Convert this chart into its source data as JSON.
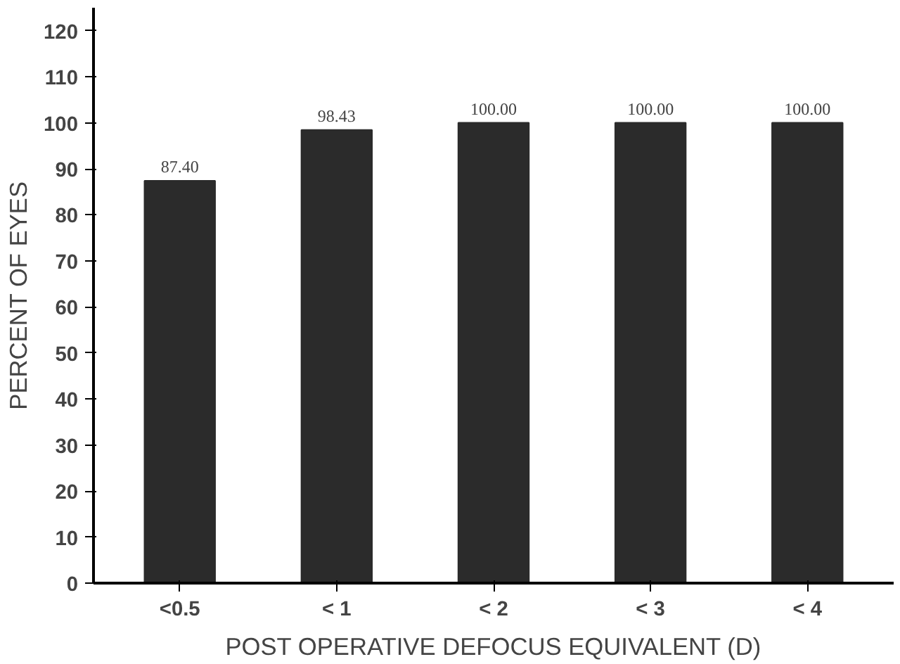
{
  "chart_data": {
    "type": "bar",
    "xlabel": "POST OPERATIVE DEFOCUS EQUIVALENT (D)",
    "ylabel": "PERCENT OF EYES",
    "categories": [
      "<0.5",
      "< 1",
      "< 2",
      "< 3",
      "< 4"
    ],
    "values": [
      87.4,
      98.43,
      100.0,
      100.0,
      100.0
    ],
    "value_labels": [
      "87.40",
      "98.43",
      "100.00",
      "100.00",
      "100.00"
    ],
    "color": "#2b2b2b",
    "ylim": [
      0,
      125
    ],
    "yticks": [
      0,
      10,
      20,
      30,
      40,
      50,
      60,
      70,
      80,
      90,
      100,
      110,
      120
    ],
    "grid": false
  }
}
